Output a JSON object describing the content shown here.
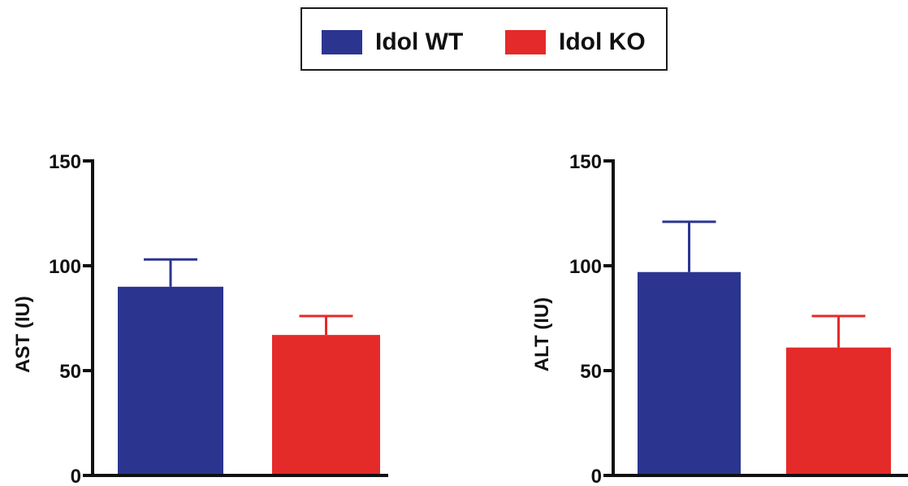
{
  "legend": {
    "items": [
      {
        "label": "Idol WT",
        "color": "#2b3590"
      },
      {
        "label": "Idol KO",
        "color": "#e52a2a"
      }
    ]
  },
  "chart_data": [
    {
      "type": "bar",
      "ylabel": "AST (IU)",
      "ylim": [
        0,
        150
      ],
      "yticks": [
        0,
        50,
        100,
        150
      ],
      "series": [
        {
          "name": "Idol WT",
          "value": 90,
          "error": 13
        },
        {
          "name": "Idol KO",
          "value": 67,
          "error": 9
        }
      ]
    },
    {
      "type": "bar",
      "ylabel": "ALT (IU)",
      "ylim": [
        0,
        150
      ],
      "yticks": [
        0,
        50,
        100,
        150
      ],
      "series": [
        {
          "name": "Idol WT",
          "value": 97,
          "error": 24
        },
        {
          "name": "Idol KO",
          "value": 61,
          "error": 15
        }
      ]
    }
  ]
}
